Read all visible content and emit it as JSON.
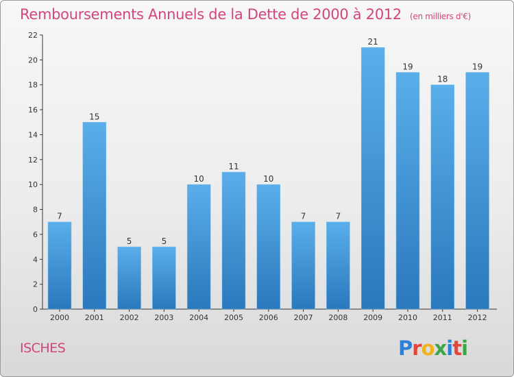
{
  "header": {
    "title": "Remboursements Annuels de la Dette de 2000 à 2012",
    "unit": "(en milliers d'€)"
  },
  "footer": {
    "town": "ISCHES",
    "logo_letters": [
      "P",
      "r",
      "o",
      "x",
      "i",
      "t",
      "i"
    ],
    "logo_colors": [
      "#2e7fd6",
      "#e0463c",
      "#f2b21c",
      "#3aa648",
      "#2e7fd6",
      "#e0463c",
      "#3aa648"
    ]
  },
  "chart_data": {
    "type": "bar",
    "categories": [
      "2000",
      "2001",
      "2002",
      "2003",
      "2004",
      "2005",
      "2006",
      "2007",
      "2008",
      "2009",
      "2010",
      "2011",
      "2012"
    ],
    "values": [
      7,
      15,
      5,
      5,
      10,
      11,
      10,
      7,
      7,
      21,
      19,
      18,
      19
    ],
    "title": "Remboursements Annuels de la Dette de 2000 à 2012",
    "subtitle": "(en milliers d'€)",
    "ylim": [
      0,
      22
    ],
    "yticks": [
      0,
      2,
      4,
      6,
      8,
      10,
      12,
      14,
      16,
      18,
      20,
      22
    ],
    "grid": false,
    "bar_color_top": "#5aaeea",
    "bar_color_bottom": "#2a78bd"
  }
}
